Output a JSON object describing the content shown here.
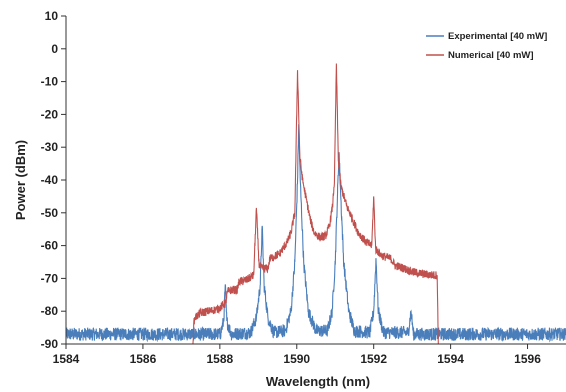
{
  "chart_data": {
    "type": "line",
    "title": "",
    "xlabel": "Wavelength (nm)",
    "ylabel": "Power (dBm)",
    "xlim": [
      1584,
      1597
    ],
    "ylim": [
      -90,
      10
    ],
    "xticks": [
      1584,
      1586,
      1588,
      1590,
      1592,
      1594,
      1596
    ],
    "yticks": [
      10,
      0,
      -10,
      -20,
      -30,
      -40,
      -50,
      -60,
      -70,
      -80,
      -90
    ],
    "grid": false,
    "legend": "top-right",
    "series": [
      {
        "name": "Experimental [40 mW]",
        "color": "#4a7ebb",
        "noise_floor": -87,
        "noise_amplitude": 2,
        "x_range": [
          1584,
          1597
        ],
        "points": [
          [
            1588.0,
            -87.5
          ],
          [
            1588.1,
            -83
          ],
          [
            1588.14,
            -72
          ],
          [
            1588.18,
            -83
          ],
          [
            1588.3,
            -87
          ],
          [
            1588.8,
            -86.5
          ],
          [
            1588.95,
            -82
          ],
          [
            1589.05,
            -72
          ],
          [
            1589.1,
            -54
          ],
          [
            1589.15,
            -72
          ],
          [
            1589.25,
            -82
          ],
          [
            1589.4,
            -86.5
          ],
          [
            1589.7,
            -86
          ],
          [
            1589.85,
            -80
          ],
          [
            1589.95,
            -65
          ],
          [
            1590.02,
            -40
          ],
          [
            1590.05,
            -23
          ],
          [
            1590.09,
            -40
          ],
          [
            1590.18,
            -65
          ],
          [
            1590.3,
            -80
          ],
          [
            1590.5,
            -86
          ],
          [
            1590.8,
            -86
          ],
          [
            1590.92,
            -80
          ],
          [
            1591.0,
            -65
          ],
          [
            1591.06,
            -44
          ],
          [
            1591.1,
            -31.5
          ],
          [
            1591.14,
            -44
          ],
          [
            1591.22,
            -65
          ],
          [
            1591.35,
            -80
          ],
          [
            1591.5,
            -86
          ],
          [
            1591.9,
            -86.5
          ],
          [
            1592.0,
            -80
          ],
          [
            1592.06,
            -64
          ],
          [
            1592.12,
            -80
          ],
          [
            1592.25,
            -86.5
          ],
          [
            1592.9,
            -86.5
          ],
          [
            1592.97,
            -80
          ],
          [
            1593.03,
            -86.5
          ]
        ]
      },
      {
        "name": "Numerical [40 mW]",
        "color": "#c0504d",
        "noise_amplitude": 1.3,
        "x_range": [
          1587.3,
          1593.7
        ],
        "points": [
          [
            1587.3,
            -90
          ],
          [
            1587.32,
            -84
          ],
          [
            1587.35,
            -82
          ],
          [
            1587.5,
            -80.5
          ],
          [
            1587.7,
            -80
          ],
          [
            1587.9,
            -79.5
          ],
          [
            1588.0,
            -79
          ],
          [
            1588.15,
            -77.5
          ],
          [
            1588.2,
            -74
          ],
          [
            1588.3,
            -73.5
          ],
          [
            1588.45,
            -73.5
          ],
          [
            1588.5,
            -71
          ],
          [
            1588.7,
            -70.5
          ],
          [
            1588.88,
            -69
          ],
          [
            1588.95,
            -48.5
          ],
          [
            1589.02,
            -66
          ],
          [
            1589.1,
            -67
          ],
          [
            1589.25,
            -67
          ],
          [
            1589.3,
            -64
          ],
          [
            1589.55,
            -62.5
          ],
          [
            1589.75,
            -59
          ],
          [
            1589.85,
            -56
          ],
          [
            1589.95,
            -50
          ],
          [
            1590.02,
            -6.5
          ],
          [
            1590.08,
            -33
          ],
          [
            1590.15,
            -40
          ],
          [
            1590.25,
            -46
          ],
          [
            1590.35,
            -52
          ],
          [
            1590.45,
            -56
          ],
          [
            1590.6,
            -57.5
          ],
          [
            1590.75,
            -57
          ],
          [
            1590.85,
            -54
          ],
          [
            1590.93,
            -48
          ],
          [
            1590.98,
            -40
          ],
          [
            1591.03,
            -4.5
          ],
          [
            1591.08,
            -34
          ],
          [
            1591.15,
            -42
          ],
          [
            1591.3,
            -48
          ],
          [
            1591.45,
            -52
          ],
          [
            1591.6,
            -56
          ],
          [
            1591.8,
            -59
          ],
          [
            1591.95,
            -60
          ],
          [
            1592.0,
            -45
          ],
          [
            1592.05,
            -61
          ],
          [
            1592.2,
            -63
          ],
          [
            1592.45,
            -64
          ],
          [
            1592.55,
            -66
          ],
          [
            1592.8,
            -67
          ],
          [
            1593.0,
            -68
          ],
          [
            1593.2,
            -68.5
          ],
          [
            1593.5,
            -69
          ],
          [
            1593.65,
            -69
          ],
          [
            1593.68,
            -90
          ]
        ]
      }
    ]
  }
}
